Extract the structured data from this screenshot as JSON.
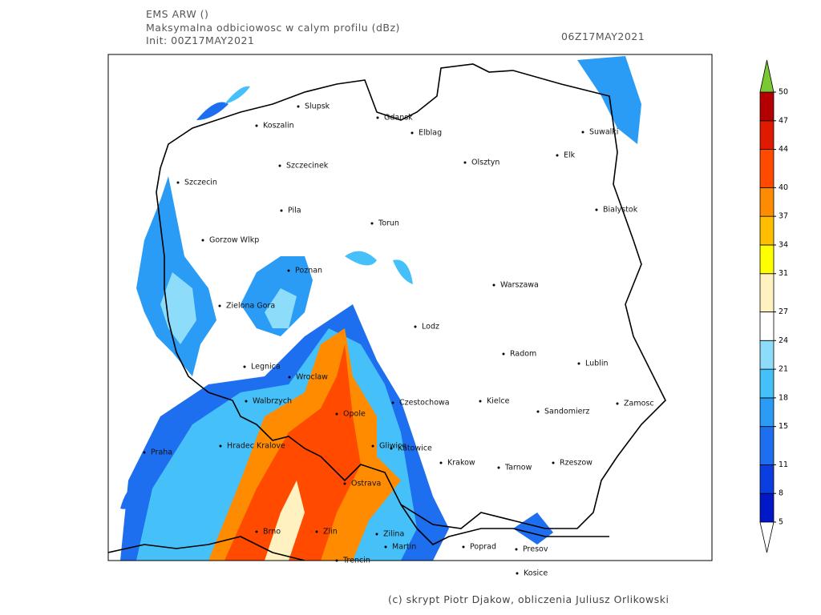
{
  "header": {
    "model": "EMS ARW ()",
    "field": "Maksymalna odbiciowosc w calym profilu (dBz)",
    "init": "Init: 00Z17MAY2021",
    "valid": "06Z17MAY2021"
  },
  "cities": [
    "Slupsk",
    "Koszalin",
    "Gdansk",
    "Elblag",
    "Suwalki",
    "Szczecinek",
    "Olsztyn",
    "Elk",
    "Szczecin",
    "Bialystok",
    "Pila",
    "Torun",
    "Gorzow Wlkp",
    "Poznan",
    "Warszawa",
    "Zielona Gora",
    "Lodz",
    "Radom",
    "Legnica",
    "Lublin",
    "Wroclaw",
    "Walbrzych",
    "Czestochowa",
    "Kielce",
    "Zamosc",
    "Sandomierz",
    "Opole",
    "Hradec Kralove",
    "Praha",
    "Gliwice",
    "Katowice",
    "Krakow",
    "Tarnow",
    "Rzeszow",
    "Ostrava",
    "Brno",
    "Zlin",
    "Zilina",
    "Poprad",
    "Presov",
    "Martin",
    "Trencin",
    "Kosice"
  ],
  "colorbar": {
    "levels": [
      5,
      8,
      11,
      15,
      18,
      21,
      24,
      27,
      31,
      34,
      37,
      40,
      44,
      47,
      50
    ],
    "colors": [
      "#0018c8",
      "#0a3ee0",
      "#1e6ef0",
      "#2a9cf5",
      "#46c0f8",
      "#8cdcfa",
      "#ffffff",
      "#fff2c0",
      "#ffff00",
      "#ffbe00",
      "#ff8c00",
      "#ff4a00",
      "#e01a00",
      "#b40000"
    ],
    "under_color": "#ffffff",
    "over_color": "#7ac832"
  },
  "footer": "(c) skrypt Piotr Djakow, obliczenia Juliusz Orlikowski"
}
